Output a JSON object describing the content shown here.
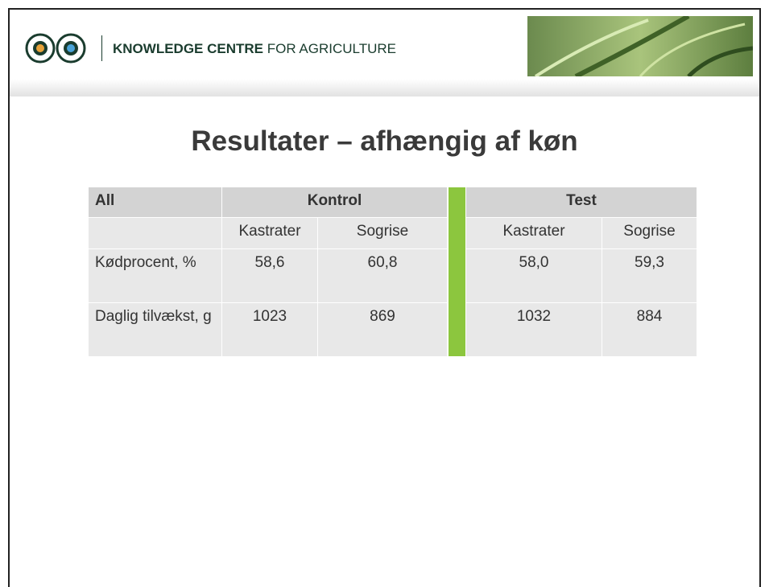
{
  "header": {
    "brand_bold": "KNOWLEDGE CENTRE",
    "brand_rest": "FOR AGRICULTURE"
  },
  "title": "Resultater – afhængig af køn",
  "table": {
    "header": {
      "corner": "All",
      "group_1": "Kontrol",
      "group_2": "Test"
    },
    "subheader": [
      "Kastrater",
      "Sogrise",
      "Kastrater",
      "Sogrise"
    ],
    "rows": [
      {
        "label": "Kødprocent, %",
        "cells": [
          "58,6",
          "60,8",
          "58,0",
          "59,3"
        ]
      },
      {
        "label": "Daglig tilvækst, g",
        "cells": [
          "1023",
          "869",
          "1032",
          "884"
        ]
      }
    ]
  }
}
